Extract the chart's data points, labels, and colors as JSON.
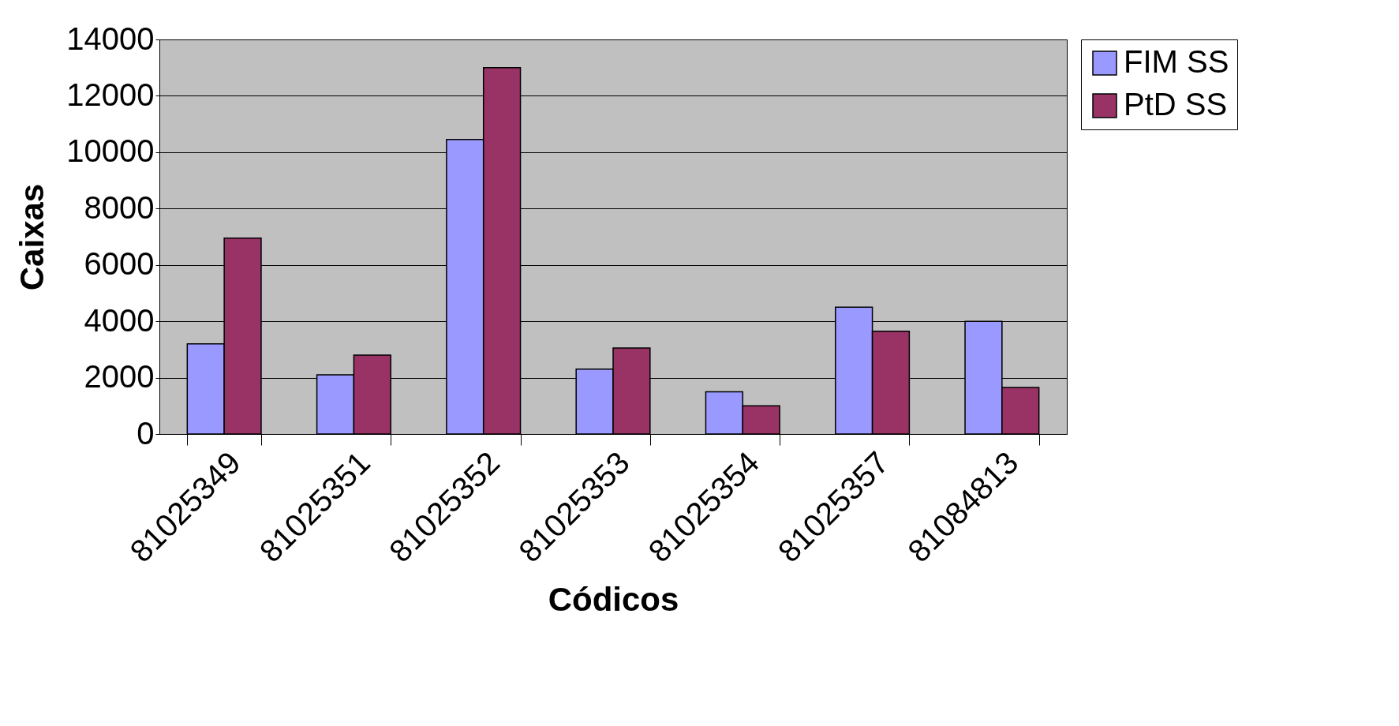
{
  "chart_data": {
    "type": "bar",
    "xlabel": "Códicos",
    "ylabel": "Caixas",
    "categories": [
      "81025349",
      "81025351",
      "81025352",
      "81025353",
      "81025354",
      "81025357",
      "81084813"
    ],
    "series": [
      {
        "name": "FIM SS",
        "color": "#9999ff",
        "values": [
          3200,
          2100,
          10450,
          2300,
          1500,
          4500,
          4000
        ]
      },
      {
        "name": "PtD SS",
        "color": "#993366",
        "values": [
          6950,
          2800,
          13000,
          3050,
          1000,
          3650,
          1650
        ]
      }
    ],
    "ylim": [
      0,
      14000
    ],
    "yticks": [
      0,
      2000,
      4000,
      6000,
      8000,
      10000,
      12000,
      14000
    ],
    "grid": "y",
    "legend": "right"
  }
}
